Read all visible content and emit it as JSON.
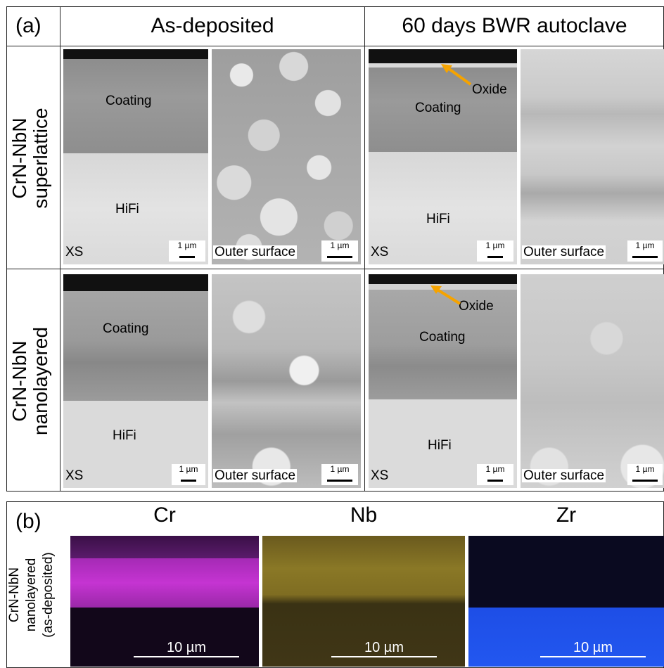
{
  "panel_a": {
    "label": "(a)",
    "columns": [
      "As-deposited",
      "60 days BWR autoclave"
    ],
    "rows": [
      {
        "line1": "CrN-NbN",
        "line2": "superlattice"
      },
      {
        "line1": "CrN-NbN",
        "line2": "nanolayered"
      }
    ],
    "image_labels": {
      "coating": "Coating",
      "hifi": "HiFi",
      "xs": "XS",
      "outer_surface": "Outer surface",
      "oxide": "Oxide",
      "scale": "1 µm"
    }
  },
  "panel_b": {
    "label": "(b)",
    "row_label": {
      "line1": "CrN-NbN",
      "line2": "nanolayered",
      "line3": "(as-deposited)"
    },
    "elements": [
      "Cr",
      "Nb",
      "Zr"
    ],
    "scale": "10 µm",
    "colors": {
      "cr": "#c534d2",
      "nb": "#8a7826",
      "zr": "#2257f0"
    }
  },
  "colors": {
    "oxide_arrow": "#f5a300"
  }
}
